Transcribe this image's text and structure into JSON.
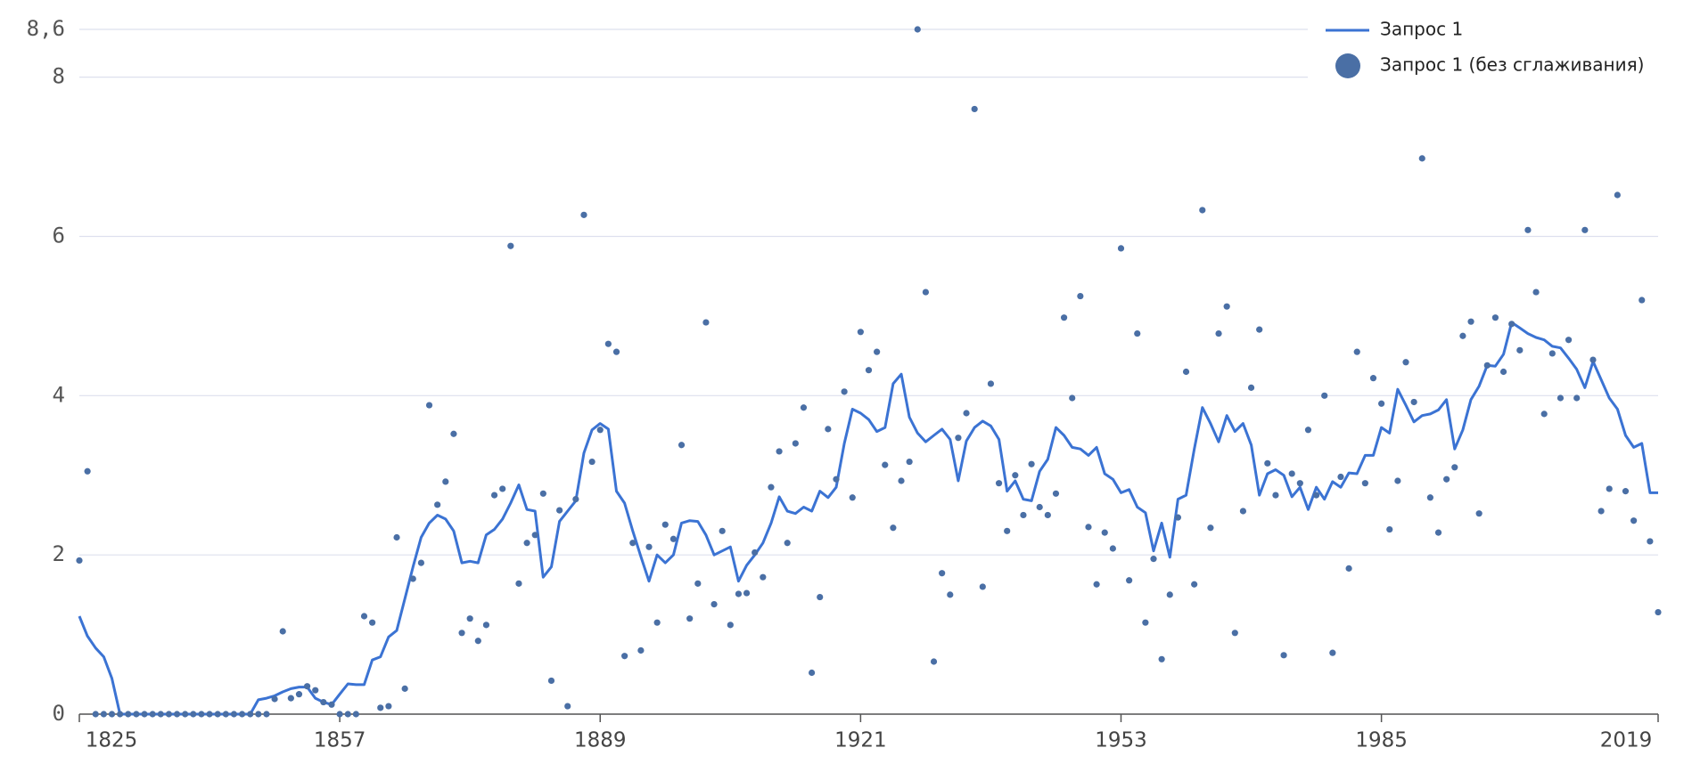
{
  "chart_data": {
    "type": "line",
    "x": [
      1825,
      1826,
      1827,
      1828,
      1829,
      1830,
      1831,
      1832,
      1833,
      1834,
      1835,
      1836,
      1837,
      1838,
      1839,
      1840,
      1841,
      1842,
      1843,
      1844,
      1845,
      1846,
      1847,
      1848,
      1849,
      1850,
      1851,
      1852,
      1853,
      1854,
      1855,
      1856,
      1857,
      1858,
      1859,
      1860,
      1861,
      1862,
      1863,
      1864,
      1865,
      1866,
      1867,
      1868,
      1869,
      1870,
      1871,
      1872,
      1873,
      1874,
      1875,
      1876,
      1877,
      1878,
      1879,
      1880,
      1881,
      1882,
      1883,
      1884,
      1885,
      1886,
      1887,
      1888,
      1889,
      1890,
      1891,
      1892,
      1893,
      1894,
      1895,
      1896,
      1897,
      1898,
      1899,
      1900,
      1901,
      1902,
      1903,
      1904,
      1905,
      1906,
      1907,
      1908,
      1909,
      1910,
      1911,
      1912,
      1913,
      1914,
      1915,
      1916,
      1917,
      1918,
      1919,
      1920,
      1921,
      1922,
      1923,
      1924,
      1925,
      1926,
      1927,
      1928,
      1929,
      1930,
      1931,
      1932,
      1933,
      1934,
      1935,
      1936,
      1937,
      1938,
      1939,
      1940,
      1941,
      1942,
      1943,
      1944,
      1945,
      1946,
      1947,
      1948,
      1949,
      1950,
      1951,
      1952,
      1953,
      1954,
      1955,
      1956,
      1957,
      1958,
      1959,
      1960,
      1961,
      1962,
      1963,
      1964,
      1965,
      1966,
      1967,
      1968,
      1969,
      1970,
      1971,
      1972,
      1973,
      1974,
      1975,
      1976,
      1977,
      1978,
      1979,
      1980,
      1981,
      1982,
      1983,
      1984,
      1985,
      1986,
      1987,
      1988,
      1989,
      1990,
      1991,
      1992,
      1993,
      1994,
      1995,
      1996,
      1997,
      1998,
      1999,
      2000,
      2001,
      2002,
      2003,
      2004,
      2005,
      2006,
      2007,
      2008,
      2009,
      2010,
      2011,
      2012,
      2013,
      2014,
      2015,
      2016,
      2017,
      2018,
      2019
    ],
    "series": [
      {
        "name": "Запрос 1",
        "type": "line",
        "color": "#3b73d3",
        "values": [
          1.23,
          0.98,
          0.83,
          0.72,
          0.45,
          0,
          0,
          0,
          0,
          0,
          0,
          0,
          0,
          0,
          0,
          0,
          0,
          0,
          0,
          0,
          0,
          0,
          0.18,
          0.2,
          0.23,
          0.28,
          0.32,
          0.34,
          0.34,
          0.2,
          0.15,
          0.12,
          0.25,
          0.38,
          0.37,
          0.37,
          0.68,
          0.72,
          0.97,
          1.05,
          1.45,
          1.85,
          2.22,
          2.4,
          2.5,
          2.45,
          2.3,
          1.9,
          1.92,
          1.9,
          2.25,
          2.32,
          2.45,
          2.65,
          2.88,
          2.57,
          2.55,
          1.72,
          1.85,
          2.42,
          2.55,
          2.68,
          3.28,
          3.57,
          3.65,
          3.58,
          2.8,
          2.65,
          2.3,
          1.98,
          1.67,
          2.0,
          1.9,
          2.0,
          2.4,
          2.43,
          2.42,
          2.25,
          2.0,
          2.05,
          2.1,
          1.67,
          1.87,
          2.0,
          2.15,
          2.4,
          2.73,
          2.55,
          2.52,
          2.6,
          2.55,
          2.8,
          2.72,
          2.85,
          3.4,
          3.83,
          3.78,
          3.7,
          3.55,
          3.6,
          4.15,
          4.27,
          3.73,
          3.53,
          3.42,
          3.5,
          3.58,
          3.45,
          2.93,
          3.43,
          3.6,
          3.68,
          3.62,
          3.45,
          2.8,
          2.93,
          2.7,
          2.68,
          3.05,
          3.2,
          3.6,
          3.5,
          3.35,
          3.33,
          3.25,
          3.35,
          3.02,
          2.95,
          2.78,
          2.82,
          2.6,
          2.53,
          2.05,
          2.4,
          1.97,
          2.7,
          2.75,
          3.33,
          3.85,
          3.65,
          3.42,
          3.75,
          3.55,
          3.65,
          3.38,
          2.75,
          3.02,
          3.07,
          3.0,
          2.73,
          2.85,
          2.57,
          2.85,
          2.7,
          2.92,
          2.85,
          3.03,
          3.02,
          3.25,
          3.25,
          3.6,
          3.53,
          4.08,
          3.88,
          3.67,
          3.75,
          3.77,
          3.82,
          3.95,
          3.33,
          3.57,
          3.95,
          4.12,
          4.38,
          4.37,
          4.52,
          4.92,
          4.85,
          4.78,
          4.73,
          4.7,
          4.62,
          4.6,
          4.47,
          4.33,
          4.1,
          4.43,
          4.2,
          3.97,
          3.83,
          3.5,
          3.35,
          3.4,
          2.78,
          2.78
        ]
      },
      {
        "name": "Запрос 1 (без сглаживания)",
        "type": "scatter",
        "color": "#4a6fa5",
        "values": [
          1.93,
          3.05,
          0,
          0,
          0,
          0,
          0,
          0,
          0,
          0,
          0,
          0,
          0,
          0,
          0,
          0,
          0,
          0,
          0,
          0,
          0,
          0,
          0,
          0,
          0.19,
          1.04,
          0.2,
          0.25,
          0.35,
          0.3,
          0.15,
          0.12,
          0,
          0,
          0,
          1.23,
          1.15,
          0.08,
          0.1,
          2.22,
          0.32,
          1.7,
          1.9,
          3.88,
          2.63,
          2.92,
          3.52,
          1.02,
          1.2,
          0.92,
          1.12,
          2.75,
          2.83,
          5.88,
          1.64,
          2.15,
          2.25,
          2.77,
          0.42,
          2.56,
          0.1,
          2.7,
          6.27,
          3.17,
          3.57,
          4.65,
          4.55,
          0.73,
          2.15,
          0.8,
          2.1,
          1.15,
          2.38,
          2.2,
          3.38,
          1.2,
          1.64,
          4.92,
          1.38,
          2.3,
          1.12,
          1.51,
          1.52,
          2.03,
          1.72,
          2.85,
          3.3,
          2.15,
          3.4,
          3.85,
          0.52,
          1.47,
          3.58,
          2.95,
          4.05,
          2.72,
          4.8,
          4.32,
          4.55,
          3.13,
          2.34,
          2.93,
          3.17,
          8.6,
          5.3,
          0.66,
          1.77,
          1.5,
          3.47,
          3.78,
          7.6,
          1.6,
          4.15,
          2.9,
          2.3,
          3.0,
          2.5,
          3.14,
          2.6,
          2.5,
          2.77,
          4.98,
          3.97,
          5.25,
          2.35,
          1.63,
          2.28,
          2.08,
          5.85,
          1.68,
          4.78,
          1.15,
          1.95,
          0.69,
          1.5,
          2.47,
          4.3,
          1.63,
          6.33,
          2.34,
          4.78,
          5.12,
          1.02,
          2.55,
          4.1,
          4.83,
          3.15,
          2.75,
          0.74,
          3.02,
          2.9,
          3.57,
          2.75,
          4.0,
          0.77,
          2.98,
          1.83,
          4.55,
          2.9,
          4.22,
          3.9,
          2.32,
          2.93,
          4.42,
          3.92,
          6.98,
          2.72,
          2.28,
          2.95,
          3.1,
          4.75,
          4.93,
          2.52,
          4.38,
          4.98,
          4.3,
          4.9,
          4.57,
          6.08,
          5.3,
          3.77,
          4.53,
          3.97,
          4.7,
          3.97,
          6.08,
          4.45,
          2.55,
          2.83,
          6.52,
          2.8,
          2.43,
          5.2,
          2.17,
          1.28
        ]
      }
    ],
    "xlim": [
      1825,
      2019
    ],
    "xticks": [
      1825,
      1857,
      1889,
      1921,
      1953,
      1985,
      2019
    ],
    "ylim": [
      0,
      8.6
    ],
    "yticks": [
      0,
      2,
      4,
      6,
      8,
      {
        "value": 8.6,
        "label": "8,6"
      }
    ],
    "grid": true,
    "legend": "top-right"
  }
}
